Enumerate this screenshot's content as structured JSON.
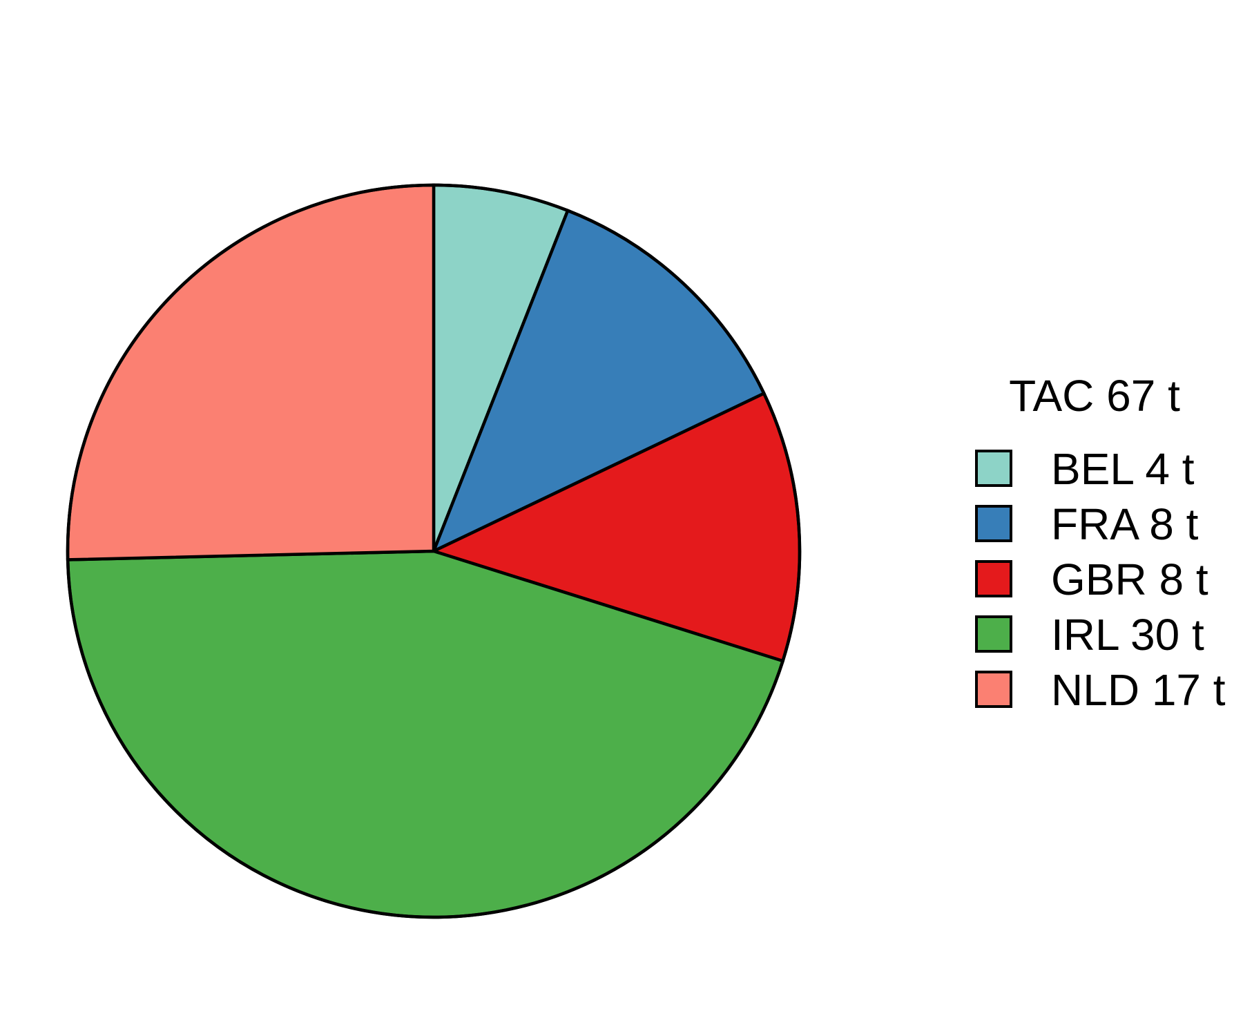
{
  "chart_data": {
    "type": "pie",
    "legend_title": "TAC 67 t",
    "legend_position": "right",
    "start": "12 o'clock",
    "direction": "clockwise",
    "slices": [
      {
        "category": "BEL",
        "value": 4,
        "label": "BEL 4 t",
        "color": "#8dd3c7"
      },
      {
        "category": "FRA",
        "value": 8,
        "label": "FRA 8 t",
        "color": "#377eb8"
      },
      {
        "category": "GBR",
        "value": 8,
        "label": "GBR 8 t",
        "color": "#e41a1c"
      },
      {
        "category": "IRL",
        "value": 30,
        "label": "IRL 30 t",
        "color": "#4daf4a"
      },
      {
        "category": "NLD",
        "value": 17,
        "label": "NLD 17 t",
        "color": "#fb8072"
      }
    ]
  }
}
